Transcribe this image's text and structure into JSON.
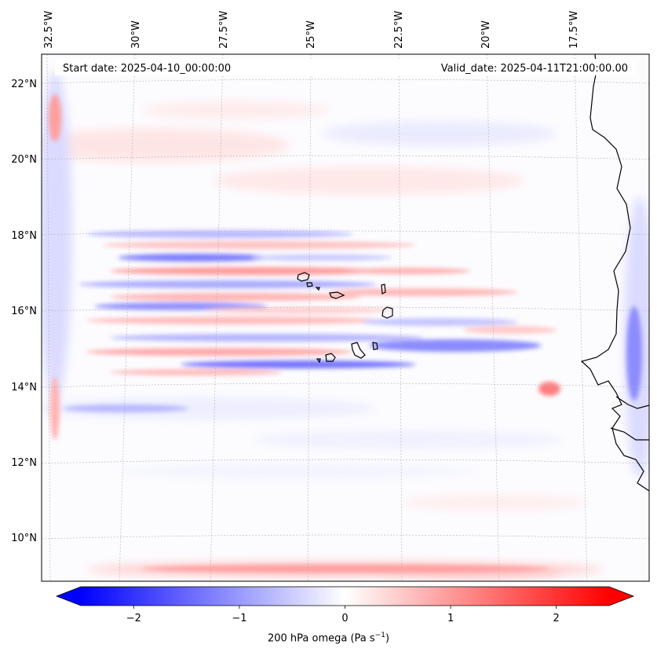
{
  "map": {
    "start_date_text": "Start date: 2025-04-10_00:00:00",
    "valid_date_text": "Valid_date: 2025-04-11T21:00:00.00",
    "lon_labels": [
      "32.5°W",
      "30°W",
      "27.5°W",
      "25°W",
      "22.5°W",
      "20°W",
      "17.5°W"
    ],
    "lat_labels": [
      "22°N",
      "20°N",
      "18°N",
      "16°N",
      "14°N",
      "12°N",
      "10°N"
    ],
    "colors": {
      "negative": "#0000ff",
      "zero": "#ffffff",
      "positive": "#ff0000",
      "coast": "#000000"
    }
  },
  "colorbar": {
    "min": -2.5,
    "max": 2.5,
    "tick_values": [
      -2,
      -1,
      0,
      1,
      2
    ],
    "tick_labels": [
      "−2",
      "−1",
      "0",
      "1",
      "2"
    ],
    "label_main": "200 hPa omega (Pa s",
    "label_exp": "−1",
    "label_end": ")"
  }
}
